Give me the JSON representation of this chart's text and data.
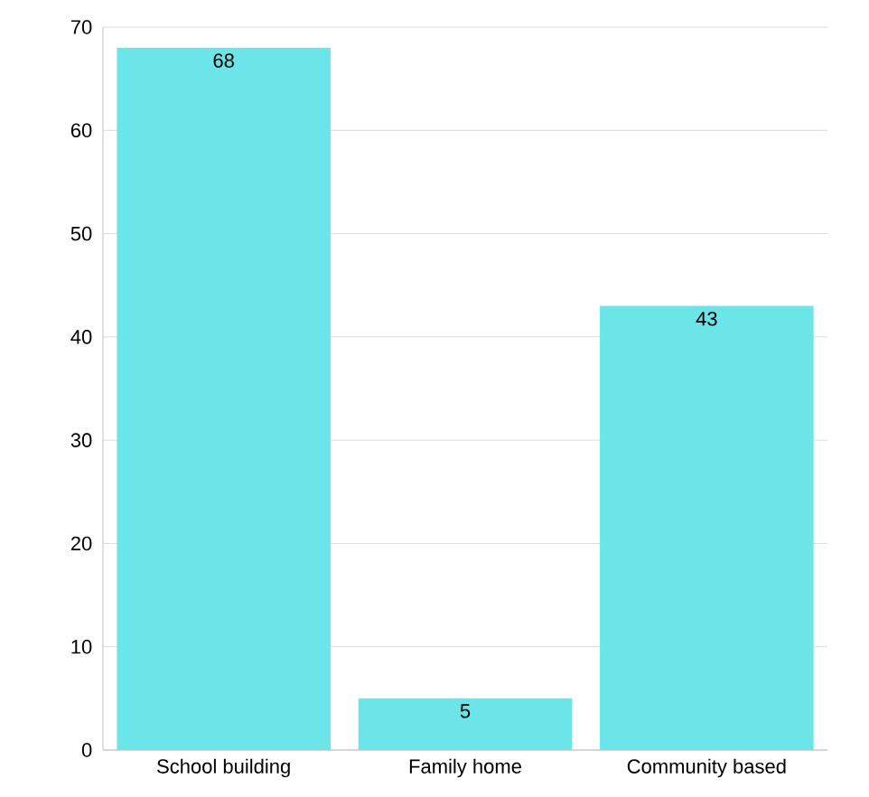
{
  "chart_data": {
    "type": "bar",
    "categories": [
      "School building",
      "Family home",
      "Community based"
    ],
    "values": [
      68,
      5,
      43
    ],
    "color": "#6ce5e8",
    "ylim": [
      0,
      70
    ],
    "yticks": [
      0,
      10,
      20,
      30,
      40,
      50,
      60,
      70
    ],
    "grid": "y",
    "data_labels": true
  }
}
